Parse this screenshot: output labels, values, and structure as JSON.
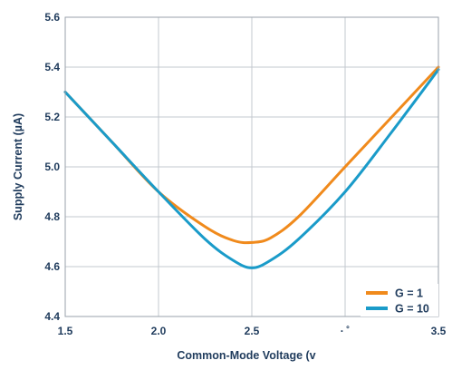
{
  "chart_data": {
    "type": "line",
    "xlabel": "Common-Mode Voltage (v",
    "ylabel": "Supply Current (µA)",
    "xlim": [
      1.5,
      3.5
    ],
    "ylim": [
      4.4,
      5.6
    ],
    "x_tick_labels": [
      "1.5",
      "2.0",
      "2.5",
      "· ˚",
      "3.5"
    ],
    "x_tick_values": [
      1.5,
      2.0,
      2.5,
      3.0,
      3.5
    ],
    "y_tick_labels": [
      "4.4",
      "4.6",
      "4.8",
      "5.0",
      "5.2",
      "5.4",
      "5.6"
    ],
    "y_tick_values": [
      4.4,
      4.6,
      4.8,
      5.0,
      5.2,
      5.4,
      5.6
    ],
    "grid": true,
    "legend_position": "bottom-right",
    "series": [
      {
        "name": "G = 1",
        "color": "#f08a1c",
        "x": [
          1.5,
          1.75,
          2.0,
          2.25,
          2.4,
          2.5,
          2.6,
          2.75,
          3.0,
          3.25,
          3.5
        ],
        "y": [
          5.3,
          5.1,
          4.9,
          4.76,
          4.705,
          4.697,
          4.715,
          4.8,
          5.0,
          5.2,
          5.4
        ]
      },
      {
        "name": "G = 10",
        "color": "#1a9bc9",
        "x": [
          1.5,
          1.75,
          2.0,
          2.25,
          2.4,
          2.5,
          2.6,
          2.75,
          3.0,
          3.25,
          3.5
        ],
        "y": [
          5.3,
          5.1,
          4.9,
          4.71,
          4.625,
          4.595,
          4.625,
          4.71,
          4.9,
          5.14,
          5.39
        ]
      }
    ]
  }
}
